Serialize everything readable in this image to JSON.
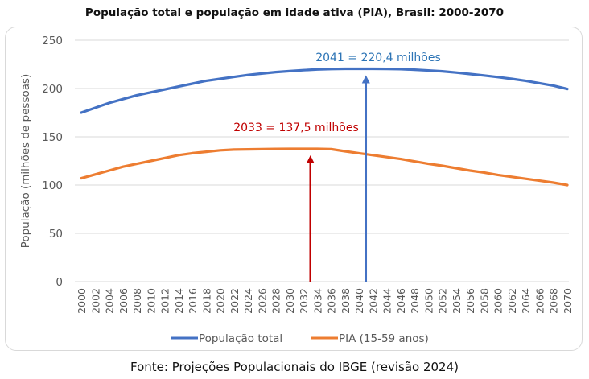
{
  "chart_data": {
    "type": "line",
    "title": "População total e população em idade ativa (PIA), Brasil: 2000-2070",
    "xlabel": "",
    "ylabel": "População (milhões de pessoas)",
    "ylim": [
      0,
      250
    ],
    "yticks": [
      0,
      50,
      100,
      150,
      200,
      250
    ],
    "xlim": [
      2000,
      2070
    ],
    "xticks": [
      2000,
      2002,
      2004,
      2006,
      2008,
      2010,
      2012,
      2014,
      2016,
      2018,
      2020,
      2022,
      2024,
      2026,
      2028,
      2030,
      2032,
      2034,
      2036,
      2038,
      2040,
      2042,
      2044,
      2046,
      2048,
      2050,
      2052,
      2054,
      2056,
      2058,
      2060,
      2062,
      2064,
      2066,
      2068,
      2070
    ],
    "grid": true,
    "legend_position": "bottom",
    "x": [
      2000,
      2002,
      2004,
      2006,
      2008,
      2010,
      2012,
      2014,
      2016,
      2018,
      2020,
      2022,
      2024,
      2026,
      2028,
      2030,
      2032,
      2034,
      2036,
      2038,
      2040,
      2042,
      2044,
      2046,
      2048,
      2050,
      2052,
      2054,
      2056,
      2058,
      2060,
      2062,
      2064,
      2066,
      2068,
      2070
    ],
    "series": [
      {
        "name": "População total",
        "color": "#4472C4",
        "values": [
          175,
          180,
          185,
          189,
          193,
          196,
          199,
          202,
          205,
          208,
          210,
          212,
          214,
          215.5,
          217,
          218,
          219,
          219.8,
          220.2,
          220.4,
          220.4,
          220.4,
          220.3,
          220.1,
          219.5,
          218.7,
          217.8,
          216.5,
          215,
          213.5,
          211.8,
          210,
          208,
          205.5,
          203,
          199.5
        ]
      },
      {
        "name": "PIA (15-59 anos)",
        "color": "#ED7D31",
        "values": [
          107,
          111,
          115,
          119,
          122,
          125,
          128,
          131,
          133,
          134.5,
          136,
          136.8,
          137,
          137.2,
          137.4,
          137.5,
          137.5,
          137.5,
          137.2,
          135,
          133,
          131,
          129,
          127,
          124.5,
          122,
          120,
          117.5,
          115,
          113,
          110.5,
          108.5,
          106.5,
          104.5,
          102.5,
          100
        ]
      }
    ],
    "annotations": [
      {
        "text": "2041 = 220,4 milhões",
        "x": 2041,
        "y": 220.4,
        "color": "#2E75B6",
        "arrow_color": "#4472C4"
      },
      {
        "text": "2033 = 137,5 milhões",
        "x": 2033,
        "y": 137.5,
        "color": "#C00000",
        "arrow_color": "#C00000"
      }
    ]
  },
  "source": "Fonte: Projeções Populacionais do IBGE (revisão 2024)"
}
